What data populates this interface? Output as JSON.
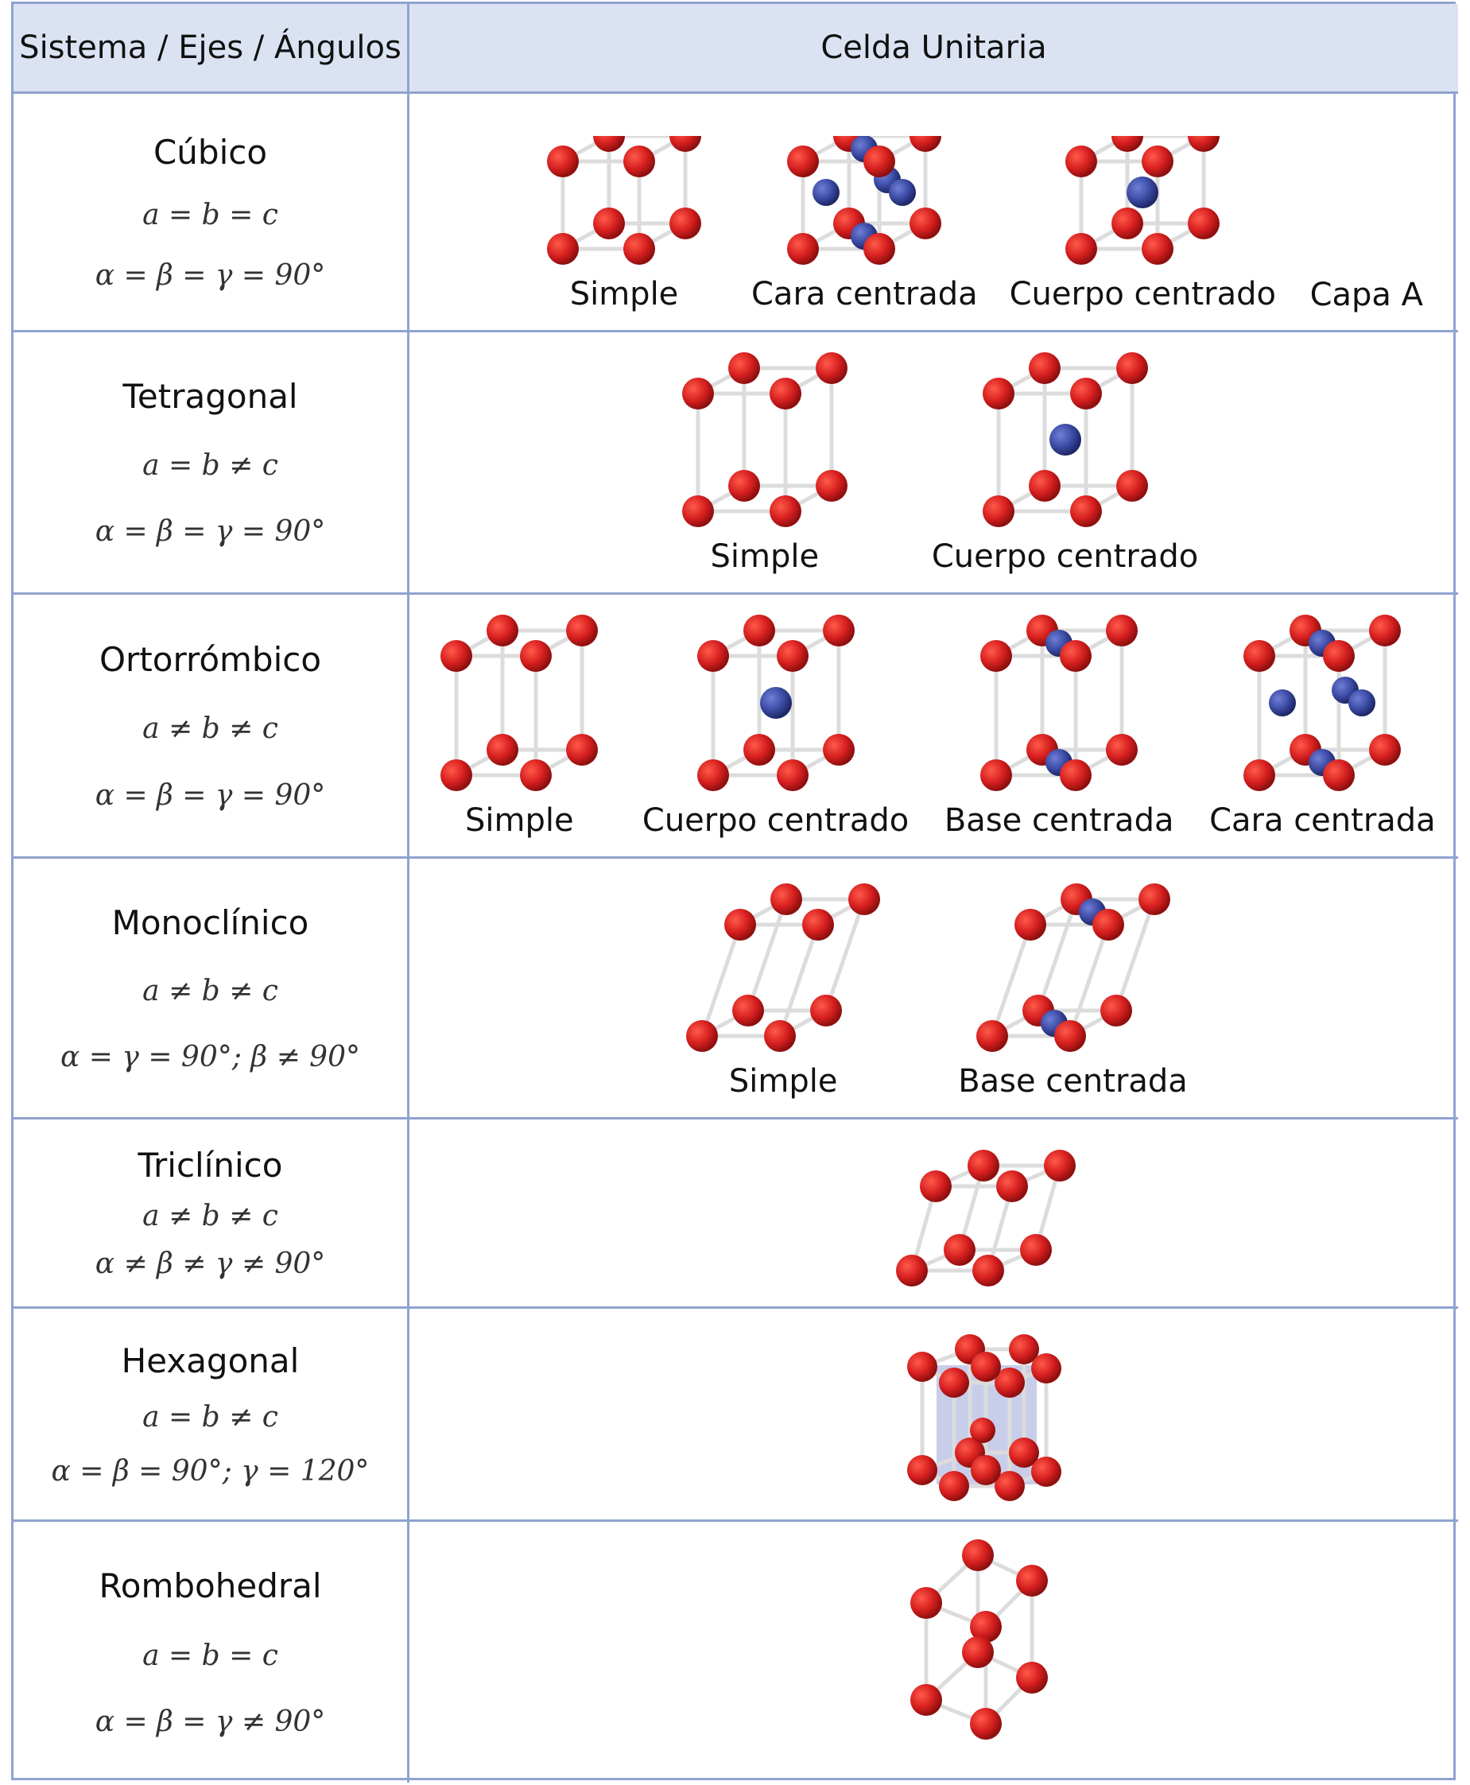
{
  "header": {
    "col1": "Sistema / Ejes / Ángulos",
    "col2": "Celda Unitaria"
  },
  "colors": {
    "border": "#8fa3cf",
    "header_bg": "#dbe3f3",
    "atom_red": "#d61f1f",
    "atom_blue": "#3b4aa3",
    "edge": "#dcdcdc"
  },
  "rows": [
    {
      "name": "Cúbico",
      "axes": "a = b = c",
      "angles": "α = β = γ = 90°",
      "cells": [
        {
          "label": "Simple"
        },
        {
          "label": "Cara centrada"
        },
        {
          "label": "Cuerpo centrado"
        }
      ],
      "note": "Capa A"
    },
    {
      "name": "Tetragonal",
      "axes": "a = b ≠ c",
      "angles": "α = β = γ = 90°",
      "cells": [
        {
          "label": "Simple"
        },
        {
          "label": "Cuerpo centrado"
        }
      ]
    },
    {
      "name": "Ortorrómbico",
      "axes": "a ≠ b ≠ c",
      "angles": "α = β = γ = 90°",
      "cells": [
        {
          "label": "Simple"
        },
        {
          "label": "Cuerpo centrado"
        },
        {
          "label": "Base centrada"
        },
        {
          "label": "Cara centrada"
        }
      ]
    },
    {
      "name": "Monoclínico",
      "axes": "a ≠ b ≠ c",
      "angles": "α =  γ = 90°; β ≠ 90°",
      "cells": [
        {
          "label": "Simple"
        },
        {
          "label": "Base centrada"
        }
      ]
    },
    {
      "name": "Triclínico",
      "axes": "a ≠ b ≠ c",
      "angles": "α ≠ β ≠ γ ≠ 90°",
      "cells": [
        {
          "label": ""
        }
      ]
    },
    {
      "name": "Hexagonal",
      "axes": "a = b ≠ c",
      "angles": "α = β = 90°; γ = 120°",
      "cells": [
        {
          "label": ""
        }
      ]
    },
    {
      "name": "Rombohedral",
      "axes": "a = b = c",
      "angles": "α = β = γ ≠ 90°",
      "cells": [
        {
          "label": ""
        }
      ]
    }
  ]
}
